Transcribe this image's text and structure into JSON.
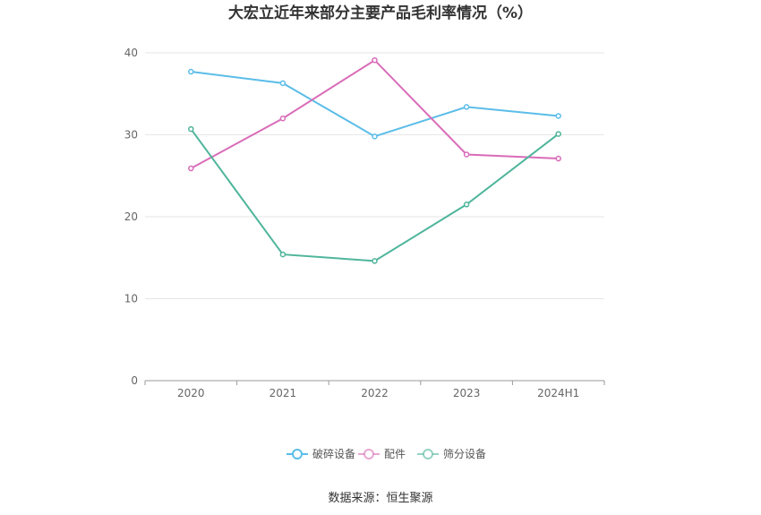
{
  "chart_data": {
    "type": "line",
    "title": "大宏立近年来部分主要产品毛利率情况（%）",
    "categories": [
      "2020",
      "2021",
      "2022",
      "2023",
      "2024H1"
    ],
    "series": [
      {
        "name": "破碎设备",
        "color": "#5bbde8",
        "values": [
          37.7,
          36.3,
          29.8,
          33.4,
          32.3
        ]
      },
      {
        "name": "配件",
        "color": "#d96cb8",
        "values": [
          25.9,
          32.0,
          39.1,
          27.6,
          27.1
        ]
      },
      {
        "name": "筛分设备",
        "color": "#4fb59b",
        "values": [
          30.7,
          15.4,
          14.6,
          21.5,
          30.1
        ]
      }
    ],
    "ylim": [
      0,
      40
    ],
    "yticks": [
      0,
      10,
      20,
      30,
      40
    ],
    "grid": true,
    "legend_position": "bottom-center"
  },
  "source_text": "数据来源：恒生聚源"
}
